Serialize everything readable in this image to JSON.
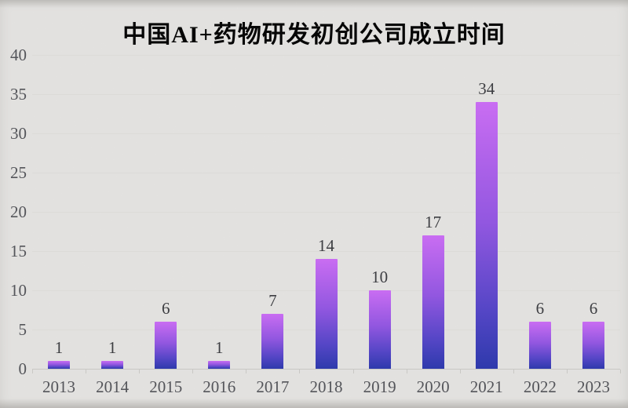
{
  "page": {
    "background": "#f2f1ee"
  },
  "chart_data": {
    "type": "bar",
    "title": "中国AI+药物研发初创公司成立时间",
    "categories": [
      "2013",
      "2014",
      "2015",
      "2016",
      "2017",
      "2018",
      "2019",
      "2020",
      "2021",
      "2022",
      "2023"
    ],
    "values": [
      1,
      1,
      6,
      1,
      7,
      14,
      10,
      17,
      34,
      6,
      6
    ],
    "xlabel": "",
    "ylabel": "",
    "ylim": [
      0,
      40
    ],
    "ytick_step": 5,
    "ytick_labels": [
      "0",
      "5",
      "10",
      "15",
      "20",
      "25",
      "30",
      "35",
      "40"
    ],
    "grid": true,
    "legend_position": "none",
    "colors": {
      "bar_gradient_top": "#c96df2",
      "bar_gradient_mid": "#9257e0",
      "bar_gradient_low": "#5546c6",
      "bar_gradient_bottom": "#2e3aac",
      "gridline": "#dcdbd8",
      "axis_line": "#c9c8c5",
      "tick_label": "#54555a",
      "data_label": "#3d3e42",
      "title": "#060606",
      "background": "#f2f1ee"
    }
  }
}
